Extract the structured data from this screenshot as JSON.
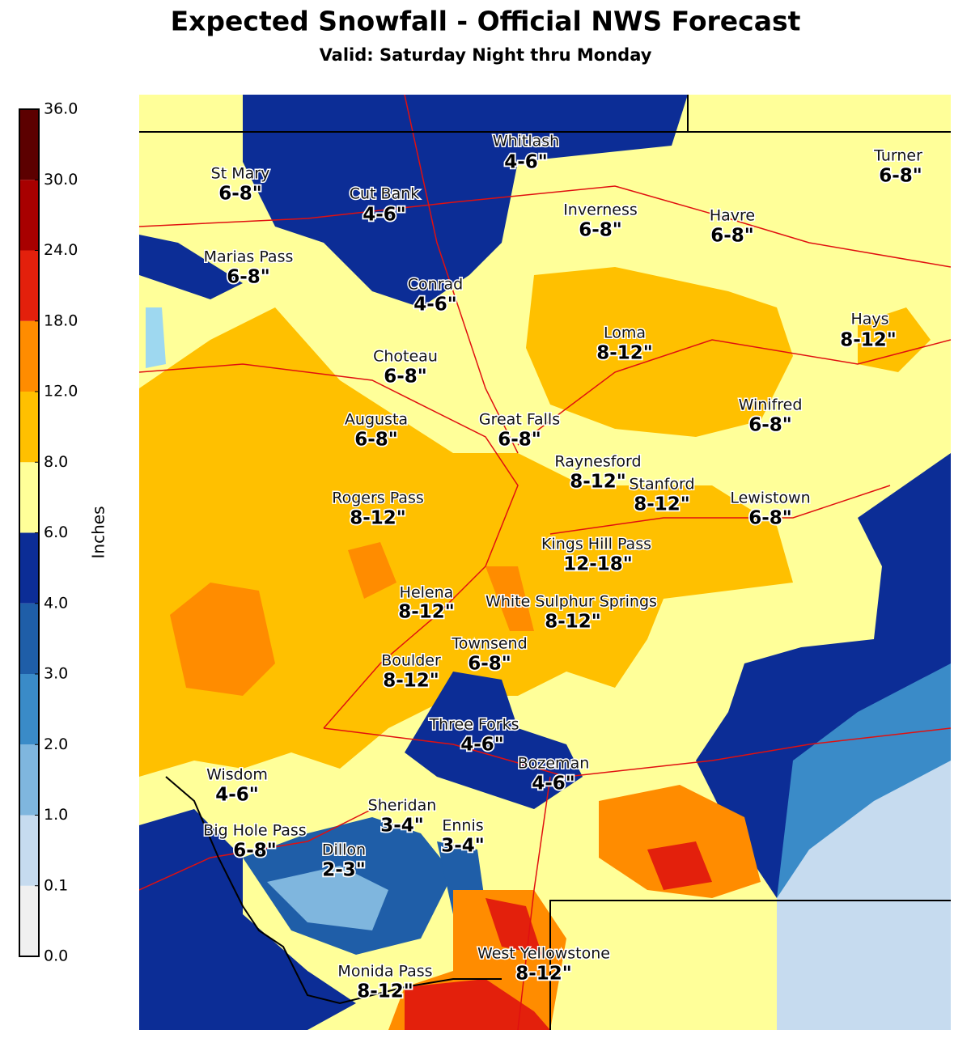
{
  "title": "Expected Snowfall - Official NWS Forecast",
  "subtitle": "Valid: Saturday Night thru Monday",
  "colorbar": {
    "label": "Inches",
    "ticks": [
      {
        "value": 0,
        "label": "0.0"
      },
      {
        "value": 0.1,
        "label": "0.1"
      },
      {
        "value": 1,
        "label": "1.0"
      },
      {
        "value": 2,
        "label": "2.0"
      },
      {
        "value": 3,
        "label": "3.0"
      },
      {
        "value": 4,
        "label": "4.0"
      },
      {
        "value": 6,
        "label": "6.0"
      },
      {
        "value": 8,
        "label": "8.0"
      },
      {
        "value": 12,
        "label": "12.0"
      },
      {
        "value": 18,
        "label": "18.0"
      },
      {
        "value": 24,
        "label": "24.0"
      },
      {
        "value": 30,
        "label": "30.0"
      },
      {
        "value": 36,
        "label": "36.0"
      }
    ],
    "colors": [
      "#f0f0f0",
      "#c6dbef",
      "#7fb6de",
      "#3a8bc8",
      "#1f5ea8",
      "#0c2d96",
      "#ffff99",
      "#ffc000",
      "#ff8c00",
      "#e3200c",
      "#a80000",
      "#5c0000"
    ]
  },
  "places": [
    {
      "name": "St Mary",
      "amount": "6-8\""
    },
    {
      "name": "Cut Bank",
      "amount": "4-6\""
    },
    {
      "name": "Whitlash",
      "amount": "4-6\""
    },
    {
      "name": "Turner",
      "amount": "6-8\""
    },
    {
      "name": "Inverness",
      "amount": "6-8\""
    },
    {
      "name": "Havre",
      "amount": "6-8\""
    },
    {
      "name": "Marias Pass",
      "amount": "6-8\""
    },
    {
      "name": "Conrad",
      "amount": "4-6\""
    },
    {
      "name": "Hays",
      "amount": "8-12\""
    },
    {
      "name": "Loma",
      "amount": "8-12\""
    },
    {
      "name": "Choteau",
      "amount": "6-8\""
    },
    {
      "name": "Winifred",
      "amount": "6-8\""
    },
    {
      "name": "Augusta",
      "amount": "6-8\""
    },
    {
      "name": "Great Falls",
      "amount": "6-8\""
    },
    {
      "name": "Raynesford",
      "amount": "8-12\""
    },
    {
      "name": "Stanford",
      "amount": "8-12\""
    },
    {
      "name": "Rogers Pass",
      "amount": "8-12\""
    },
    {
      "name": "Lewistown",
      "amount": "6-8\""
    },
    {
      "name": "Kings Hill Pass",
      "amount": "12-18\""
    },
    {
      "name": "Helena",
      "amount": "8-12\""
    },
    {
      "name": "White Sulphur Springs",
      "amount": "8-12\""
    },
    {
      "name": "Townsend",
      "amount": "6-8\""
    },
    {
      "name": "Boulder",
      "amount": "8-12\""
    },
    {
      "name": "Three Forks",
      "amount": "4-6\""
    },
    {
      "name": "Bozeman",
      "amount": "4-6\""
    },
    {
      "name": "Wisdom",
      "amount": "4-6\""
    },
    {
      "name": "Sheridan",
      "amount": "3-4\""
    },
    {
      "name": "Ennis",
      "amount": "3-4\""
    },
    {
      "name": "Big Hole Pass",
      "amount": "6-8\""
    },
    {
      "name": "Dillon",
      "amount": "2-3\""
    },
    {
      "name": "West Yellowstone",
      "amount": "8-12\""
    },
    {
      "name": "Monida Pass",
      "amount": "8-12\""
    }
  ]
}
